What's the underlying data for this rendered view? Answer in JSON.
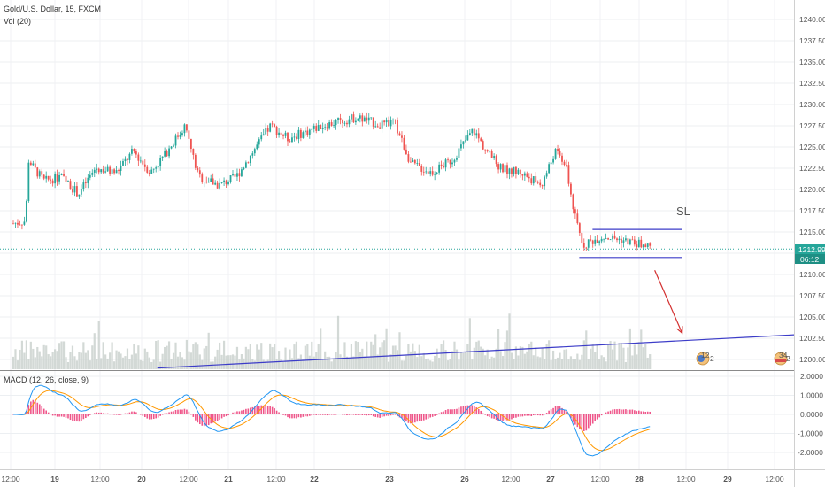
{
  "header": {
    "symbol_line": "Gold/U.S. Dollar, 15, FXCM",
    "volume_line": "Vol (20)",
    "macd_line": "MACD (12, 26, close, 9)"
  },
  "price_tag": {
    "value": "1212.99",
    "countdown": "06:12",
    "color": "#26a69a"
  },
  "annotation": {
    "label": "SL"
  },
  "events": [
    {
      "label": "12",
      "sub": "2"
    },
    {
      "label": "34",
      "sub": "2"
    }
  ],
  "colors": {
    "up": "#26a69a",
    "down": "#ef5350",
    "volume": "#c8d0cc",
    "trendline": "#3c3cc8",
    "arrow": "#d32f2f",
    "macd": "#2196f3",
    "signal": "#ff9800",
    "histogram": "#e91e63"
  },
  "chart_data": [
    {
      "type": "candlestick",
      "title": "Gold/U.S. Dollar, 15, FXCM",
      "x_ticks": [
        "12:00",
        "19",
        "12:00",
        "20",
        "12:00",
        "21",
        "12:00",
        "22",
        "23",
        "26",
        "12:00",
        "27",
        "12:00",
        "28",
        "12:00",
        "29",
        "12:00"
      ],
      "y_ticks": [
        1240.0,
        1237.5,
        1235.0,
        1232.5,
        1230.0,
        1227.5,
        1225.0,
        1222.5,
        1220.0,
        1217.5,
        1215.0,
        1212.5,
        1210.0,
        1207.5,
        1205.0,
        1202.5,
        1200.0
      ],
      "ylim": [
        1199.0,
        1241.5
      ],
      "last_price": 1212.99,
      "close_path": [
        {
          "day": 0.0,
          "price": 1216.0
        },
        {
          "day": 0.18,
          "price": 1216.3
        },
        {
          "day": 0.22,
          "price": 1223.5
        },
        {
          "day": 0.3,
          "price": 1222.5
        },
        {
          "day": 0.45,
          "price": 1221.0
        },
        {
          "day": 0.7,
          "price": 1221.5
        },
        {
          "day": 0.95,
          "price": 1219.5
        },
        {
          "day": 1.2,
          "price": 1222.5
        },
        {
          "day": 1.5,
          "price": 1222.0
        },
        {
          "day": 1.75,
          "price": 1224.5
        },
        {
          "day": 2.0,
          "price": 1222.0
        },
        {
          "day": 2.2,
          "price": 1224.0
        },
        {
          "day": 2.5,
          "price": 1227.5
        },
        {
          "day": 2.7,
          "price": 1221.5
        },
        {
          "day": 3.0,
          "price": 1220.5
        },
        {
          "day": 3.25,
          "price": 1221.5
        },
        {
          "day": 3.5,
          "price": 1224.5
        },
        {
          "day": 3.75,
          "price": 1227.5
        },
        {
          "day": 4.0,
          "price": 1226.0
        },
        {
          "day": 4.5,
          "price": 1227.5
        },
        {
          "day": 5.0,
          "price": 1228.5
        },
        {
          "day": 5.4,
          "price": 1227.5
        },
        {
          "day": 5.55,
          "price": 1228.0
        },
        {
          "day": 5.8,
          "price": 1223.0
        },
        {
          "day": 6.1,
          "price": 1222.0
        },
        {
          "day": 6.4,
          "price": 1223.5
        },
        {
          "day": 6.7,
          "price": 1227.0
        },
        {
          "day": 6.9,
          "price": 1224.5
        },
        {
          "day": 7.1,
          "price": 1222.5
        },
        {
          "day": 7.4,
          "price": 1222.0
        },
        {
          "day": 7.7,
          "price": 1220.5
        },
        {
          "day": 7.9,
          "price": 1224.5
        },
        {
          "day": 8.05,
          "price": 1223.0
        },
        {
          "day": 8.18,
          "price": 1217.0
        },
        {
          "day": 8.3,
          "price": 1213.5
        },
        {
          "day": 8.6,
          "price": 1214.5
        },
        {
          "day": 8.9,
          "price": 1214.0
        },
        {
          "day": 9.15,
          "price": 1213.5
        },
        {
          "day": 9.3,
          "price": 1212.99
        }
      ],
      "annotations": {
        "sl_box": {
          "top": 1215.3,
          "bottom": 1212.0,
          "from_day": 8.25,
          "to_day": 9.75
        },
        "trendline": {
          "start": {
            "day": 2.1,
            "price": 1199.0
          },
          "end": {
            "day": 10.9,
            "price": 1202.9
          }
        },
        "down_arrow": {
          "from": {
            "day": 9.35,
            "price": 1210.5
          },
          "to": {
            "day": 9.75,
            "price": 1203.1
          }
        }
      }
    },
    {
      "type": "bar",
      "title": "Vol (20)"
    },
    {
      "type": "line",
      "title": "MACD (12, 26, close, 9)",
      "y_ticks": [
        2.0,
        1.0,
        0.0,
        -1.0,
        -2.0
      ],
      "ylim": [
        -2.75,
        2.25
      ],
      "series": [
        {
          "name": "MACD",
          "values": []
        },
        {
          "name": "Signal",
          "values": []
        },
        {
          "name": "Histogram",
          "values": []
        }
      ]
    }
  ]
}
